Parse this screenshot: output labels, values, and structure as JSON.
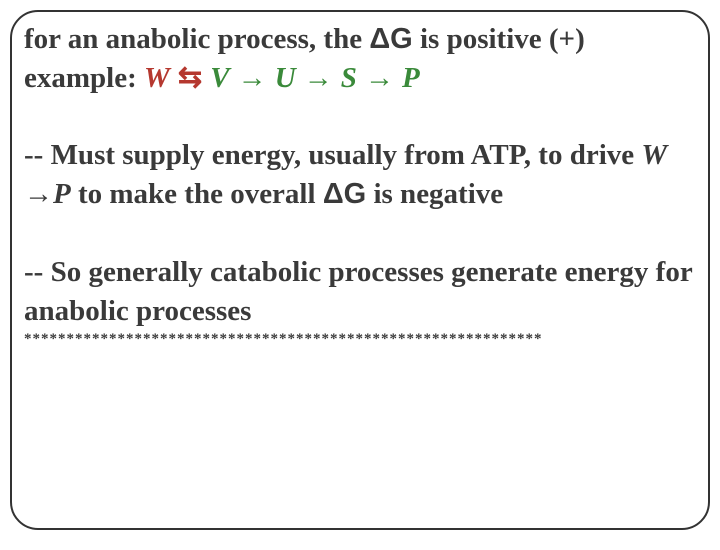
{
  "text": {
    "line1": "for an anabolic process, the ",
    "deltaG1": "ΔG",
    "line1b": " is positive (+)",
    "line2a": "example: ",
    "W": "W",
    "equil": " ⇆ ",
    "V": "V",
    "arrow1": " → ",
    "U": "U",
    "arrow2": " → ",
    "S": "S",
    "arrow3": " → ",
    "P": "P",
    "line3a": "-- Must supply energy, usually from ATP, to drive ",
    "Wital": "W ",
    "arrowPlain": "→",
    "Pital": "P",
    "line3b": "  to make the overall ",
    "deltaG2": "ΔG",
    "line3c": " is negative",
    "line4": "-- So generally catabolic processes generate energy for anabolic processes",
    "stars": "*************************************************************"
  },
  "colors": {
    "text": "#3a3a3a",
    "red": "#b5382f",
    "green": "#3a8a3a",
    "border": "#333333",
    "background": "#ffffff"
  },
  "fontsizes": {
    "main": 29,
    "stars": 15
  }
}
